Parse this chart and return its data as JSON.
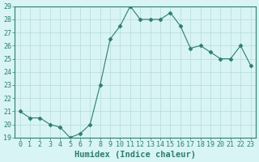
{
  "x": [
    0,
    1,
    2,
    3,
    4,
    5,
    6,
    7,
    8,
    9,
    10,
    11,
    12,
    13,
    14,
    15,
    16,
    17,
    18,
    19,
    20,
    21,
    22,
    23
  ],
  "y": [
    21,
    20.5,
    20.5,
    20,
    19.8,
    19,
    19.3,
    20,
    23,
    26.5,
    27.5,
    29,
    28,
    28,
    28,
    28.5,
    27.5,
    25.8,
    26,
    25.5,
    25,
    25,
    26,
    24.5
  ],
  "line_color": "#2e7d6e",
  "marker": "D",
  "marker_size": 2.5,
  "bg_color": "#d8f4f4",
  "grid_color": "#b8dada",
  "xlabel": "Humidex (Indice chaleur)",
  "ylim": [
    19,
    29
  ],
  "xlim": [
    -0.5,
    23.5
  ],
  "yticks": [
    19,
    20,
    21,
    22,
    23,
    24,
    25,
    26,
    27,
    28,
    29
  ],
  "xticks": [
    0,
    1,
    2,
    3,
    4,
    5,
    6,
    7,
    8,
    9,
    10,
    11,
    12,
    13,
    14,
    15,
    16,
    17,
    18,
    19,
    20,
    21,
    22,
    23
  ],
  "xlabel_color": "#2e7d6e",
  "tick_color": "#2e7d6e",
  "tick_fontsize": 6,
  "xlabel_fontsize": 7.5,
  "linewidth": 0.8
}
